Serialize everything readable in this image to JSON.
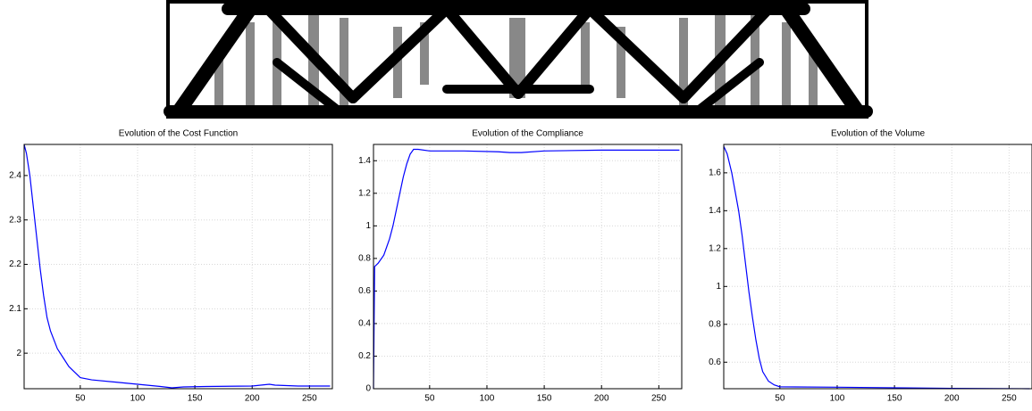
{
  "chart_data": [
    {
      "type": "line",
      "title": "Evolution of the Cost Function",
      "x": [
        1,
        3,
        6,
        9,
        12,
        15,
        18,
        21,
        24,
        27,
        30,
        35,
        40,
        50,
        60,
        80,
        100,
        120,
        130,
        140,
        160,
        200,
        215,
        220,
        240,
        268
      ],
      "series": [
        {
          "color": "#0000ff",
          "values": [
            2.47,
            2.45,
            2.4,
            2.33,
            2.26,
            2.19,
            2.13,
            2.08,
            2.05,
            2.03,
            2.01,
            1.99,
            1.97,
            1.945,
            1.94,
            1.935,
            1.93,
            1.925,
            1.922,
            1.924,
            1.925,
            1.926,
            1.93,
            1.928,
            1.926,
            1.926
          ]
        }
      ],
      "xlim": [
        1,
        270
      ],
      "xticks": [
        50,
        100,
        150,
        200,
        250
      ],
      "ylim": [
        1.92,
        2.47
      ],
      "yticks": [
        2,
        2.1,
        2.2,
        2.3,
        2.4
      ],
      "grid": true
    },
    {
      "type": "line",
      "title": "Evolution of the Compliance",
      "x": [
        1,
        2,
        5,
        10,
        15,
        18,
        21,
        24,
        27,
        30,
        33,
        36,
        40,
        50,
        80,
        110,
        120,
        130,
        150,
        200,
        268
      ],
      "series": [
        {
          "color": "#0000ff",
          "values": [
            0,
            0.75,
            0.77,
            0.82,
            0.92,
            1.0,
            1.1,
            1.2,
            1.3,
            1.38,
            1.44,
            1.47,
            1.47,
            1.46,
            1.46,
            1.455,
            1.45,
            1.45,
            1.46,
            1.465,
            1.465
          ]
        }
      ],
      "xlim": [
        1,
        270
      ],
      "xticks": [
        50,
        100,
        150,
        200,
        250
      ],
      "ylim": [
        0,
        1.5
      ],
      "yticks": [
        0,
        0.2,
        0.4,
        0.6,
        0.8,
        1,
        1.2,
        1.4
      ],
      "grid": true
    },
    {
      "type": "line",
      "title": "Evolution of the Volume",
      "x": [
        1,
        4,
        8,
        11,
        14,
        17,
        20,
        23,
        26,
        29,
        32,
        35,
        40,
        45,
        50,
        100,
        150,
        200,
        268
      ],
      "series": [
        {
          "color": "#0000ff",
          "values": [
            1.74,
            1.7,
            1.6,
            1.5,
            1.4,
            1.27,
            1.12,
            0.97,
            0.84,
            0.72,
            0.62,
            0.55,
            0.5,
            0.48,
            0.47,
            0.468,
            0.465,
            0.462,
            0.46
          ]
        }
      ],
      "xlim": [
        1,
        270
      ],
      "xticks": [
        50,
        100,
        150,
        200,
        250
      ],
      "ylim": [
        0.46,
        1.75
      ],
      "yticks": [
        0.6,
        0.8,
        1,
        1.2,
        1.4,
        1.6
      ],
      "grid": true
    }
  ]
}
